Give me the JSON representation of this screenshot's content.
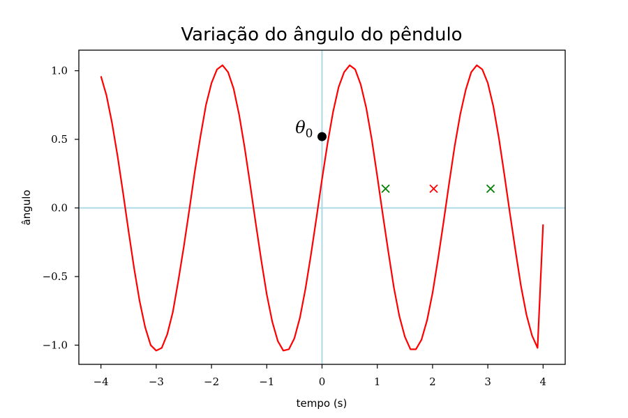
{
  "chart_data": {
    "type": "line",
    "title": "Variação do ângulo do pêndulo",
    "xlabel": "tempo (s)",
    "ylabel": "ângulo",
    "xlim": [
      -4.4,
      4.4
    ],
    "ylim": [
      -1.14,
      1.15
    ],
    "x_ticks": [
      -4,
      -3,
      -2,
      -1,
      0,
      1,
      2,
      3,
      4
    ],
    "x_tick_labels": [
      "−4",
      "−3",
      "−2",
      "−1",
      "0",
      "1",
      "2",
      "3",
      "4"
    ],
    "y_ticks": [
      -1.0,
      -0.5,
      0.0,
      0.5,
      1.0
    ],
    "y_tick_labels": [
      "−1.0",
      "−0.5",
      "0.0",
      "0.5",
      "1.0"
    ],
    "grid": false,
    "reference_lines": {
      "color": "#add8e6",
      "x": 0,
      "y": 0
    },
    "series": [
      {
        "color": "#ff0000",
        "points": [
          [
            -4.0,
            0.96
          ],
          [
            -3.9,
            0.82
          ],
          [
            -3.8,
            0.62
          ],
          [
            -3.7,
            0.38
          ],
          [
            -3.6,
            0.11
          ],
          [
            -3.5,
            -0.17
          ],
          [
            -3.4,
            -0.44
          ],
          [
            -3.3,
            -0.68
          ],
          [
            -3.2,
            -0.87
          ],
          [
            -3.1,
            -1.0
          ],
          [
            -3.0,
            -1.04
          ],
          [
            -2.9,
            -1.02
          ],
          [
            -2.8,
            -0.92
          ],
          [
            -2.7,
            -0.76
          ],
          [
            -2.6,
            -0.53
          ],
          [
            -2.5,
            -0.28
          ],
          [
            -2.4,
            -0.01
          ],
          [
            -2.3,
            0.27
          ],
          [
            -2.2,
            0.52
          ],
          [
            -2.1,
            0.75
          ],
          [
            -2.0,
            0.91
          ],
          [
            -1.9,
            1.01
          ],
          [
            -1.8,
            1.04
          ],
          [
            -1.7,
            0.99
          ],
          [
            -1.6,
            0.87
          ],
          [
            -1.5,
            0.68
          ],
          [
            -1.4,
            0.44
          ],
          [
            -1.3,
            0.17
          ],
          [
            -1.2,
            -0.11
          ],
          [
            -1.1,
            -0.38
          ],
          [
            -1.0,
            -0.63
          ],
          [
            -0.9,
            -0.83
          ],
          [
            -0.8,
            -0.97
          ],
          [
            -0.7,
            -1.04
          ],
          [
            -0.6,
            -1.03
          ],
          [
            -0.5,
            -0.95
          ],
          [
            -0.4,
            -0.8
          ],
          [
            -0.3,
            -0.59
          ],
          [
            -0.2,
            -0.34
          ],
          [
            -0.1,
            -0.07
          ],
          [
            0.0,
            0.21
          ],
          [
            0.1,
            0.47
          ],
          [
            0.2,
            0.7
          ],
          [
            0.3,
            0.88
          ],
          [
            0.4,
            0.99
          ],
          [
            0.5,
            1.04
          ],
          [
            0.6,
            1.01
          ],
          [
            0.7,
            0.9
          ],
          [
            0.8,
            0.73
          ],
          [
            0.9,
            0.5
          ],
          [
            1.0,
            0.23
          ],
          [
            1.1,
            -0.05
          ],
          [
            1.2,
            -0.32
          ],
          [
            1.3,
            -0.58
          ],
          [
            1.4,
            -0.79
          ],
          [
            1.5,
            -0.94
          ],
          [
            1.6,
            -1.03
          ],
          [
            1.7,
            -1.03
          ],
          [
            1.8,
            -0.96
          ],
          [
            1.9,
            -0.82
          ],
          [
            2.0,
            -0.62
          ],
          [
            2.1,
            -0.37
          ],
          [
            2.2,
            -0.1
          ],
          [
            2.3,
            0.18
          ],
          [
            2.4,
            0.45
          ],
          [
            2.5,
            0.68
          ],
          [
            2.6,
            0.86
          ],
          [
            2.7,
            0.99
          ],
          [
            2.8,
            1.04
          ],
          [
            2.9,
            1.01
          ],
          [
            3.0,
            0.91
          ],
          [
            3.1,
            0.74
          ],
          [
            3.2,
            0.51
          ],
          [
            3.3,
            0.24
          ],
          [
            3.4,
            -0.04
          ],
          [
            3.5,
            -0.31
          ],
          [
            3.6,
            -0.57
          ],
          [
            3.7,
            -0.78
          ],
          [
            3.8,
            -0.93
          ],
          [
            3.9,
            -1.02
          ],
          [
            4.0,
            -0.12
          ]
        ]
      }
    ],
    "marked_points": [
      {
        "x": 0.0,
        "y": 0.52,
        "marker": "dot",
        "color": "#000000",
        "label": "θ0"
      },
      {
        "x": 1.15,
        "y": 0.14,
        "marker": "x",
        "color": "#008000"
      },
      {
        "x": 2.02,
        "y": 0.14,
        "marker": "x",
        "color": "#ff0000"
      },
      {
        "x": 3.05,
        "y": 0.14,
        "marker": "x",
        "color": "#008000"
      }
    ]
  }
}
